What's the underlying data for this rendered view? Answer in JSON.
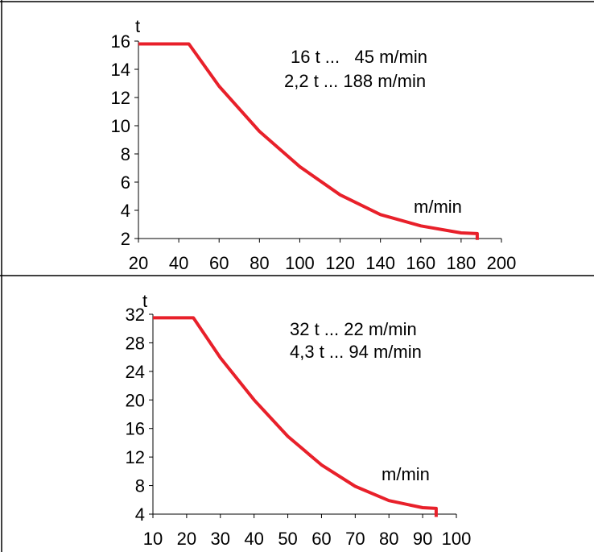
{
  "chart_data": [
    {
      "type": "line",
      "ylabel": "t",
      "xlabel": "m/min",
      "annotations": [
        "16 t ...   45 m/min",
        "2,2 t ... 188 m/min"
      ],
      "xlim": [
        20,
        200
      ],
      "ylim": [
        2,
        16
      ],
      "xticks": [
        "20",
        "40",
        "60",
        "80",
        "100",
        "120",
        "140",
        "160",
        "180",
        "200"
      ],
      "yticks": [
        "2",
        "4",
        "6",
        "8",
        "10",
        "12",
        "14",
        "16"
      ],
      "grid": false,
      "series": [
        {
          "color": "#e8202a",
          "x": [
            20,
            45,
            60,
            80,
            100,
            120,
            140,
            160,
            180,
            188,
            188
          ],
          "y": [
            15.8,
            15.8,
            12.8,
            9.6,
            7.1,
            5.1,
            3.7,
            2.9,
            2.4,
            2.35,
            1.9
          ]
        }
      ]
    },
    {
      "type": "line",
      "ylabel": "t",
      "xlabel": "m/min",
      "annotations": [
        "32 t ... 22 m/min",
        "4,3 t ... 94 m/min"
      ],
      "xlim": [
        10,
        100
      ],
      "ylim": [
        4,
        32
      ],
      "xticks": [
        "10",
        "20",
        "30",
        "40",
        "50",
        "60",
        "70",
        "80",
        "90",
        "100"
      ],
      "yticks": [
        "4",
        "8",
        "12",
        "16",
        "20",
        "24",
        "28",
        "32"
      ],
      "grid": false,
      "series": [
        {
          "color": "#e8202a",
          "x": [
            10,
            22,
            30,
            40,
            50,
            60,
            70,
            80,
            90,
            94,
            94
          ],
          "y": [
            31.5,
            31.5,
            25.9,
            20.0,
            14.9,
            10.9,
            7.9,
            5.9,
            4.9,
            4.8,
            3.6
          ]
        }
      ]
    }
  ]
}
